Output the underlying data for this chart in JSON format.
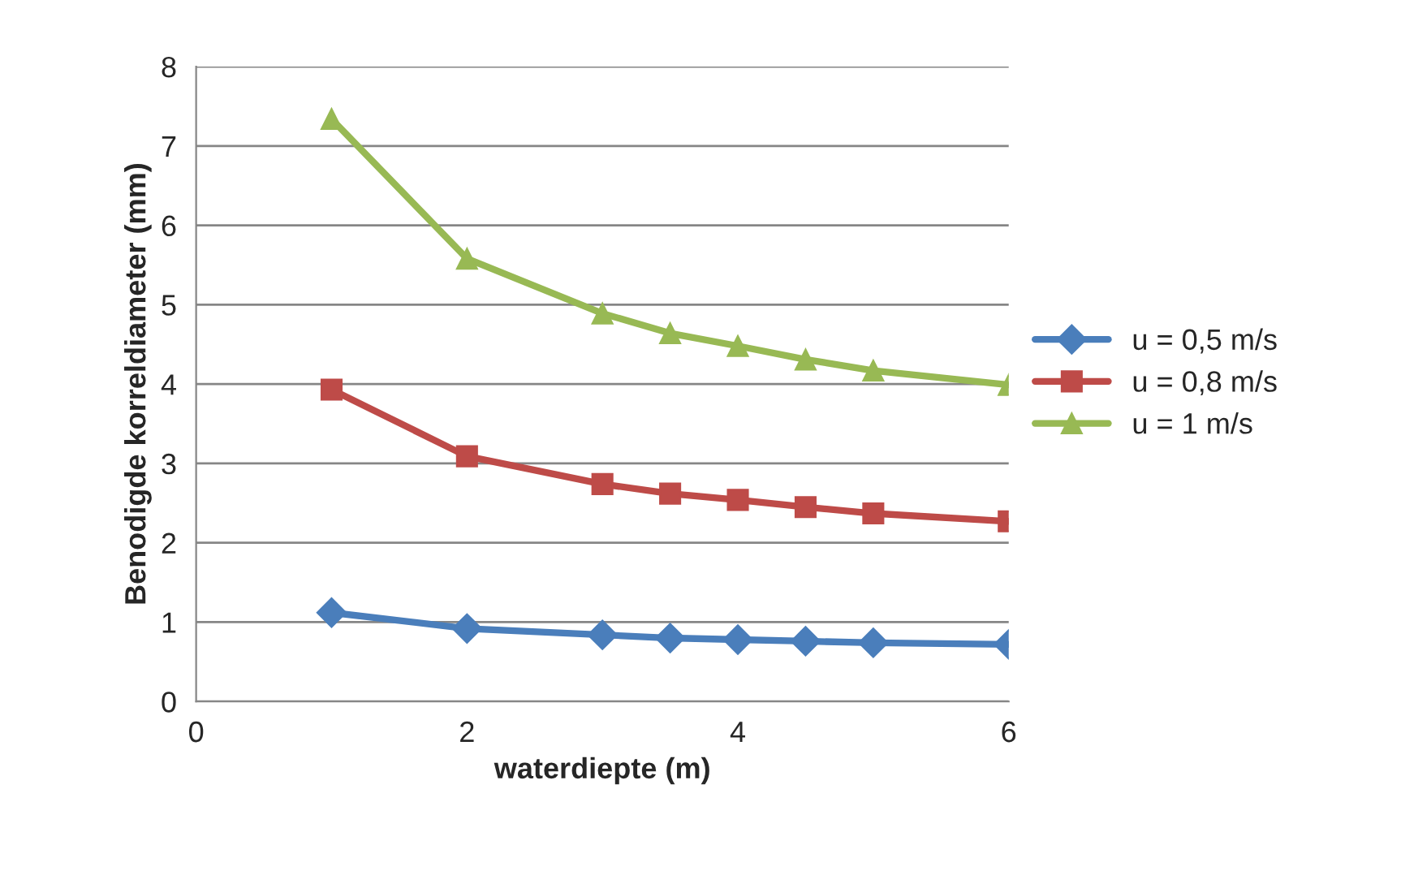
{
  "chart_data": {
    "type": "line",
    "xlabel": "waterdiepte (m)",
    "ylabel": "Benodigde korreldiameter (mm)",
    "xlim": [
      0,
      6
    ],
    "xticks": [
      0,
      2,
      4,
      6
    ],
    "ylim": [
      0,
      8
    ],
    "yticks": [
      0,
      1,
      2,
      3,
      4,
      5,
      6,
      7,
      8
    ],
    "grid": "y",
    "legend": "right",
    "line_style": "solid",
    "x": [
      1,
      2,
      3,
      3.5,
      4,
      4.5,
      5,
      6
    ],
    "series": [
      {
        "name": "u = 0,5 m/s",
        "color": "#4a7ebb",
        "marker": "diamond",
        "values": [
          1.12,
          0.92,
          0.84,
          0.8,
          0.78,
          0.76,
          0.74,
          0.72
        ]
      },
      {
        "name": "u = 0,8 m/s",
        "color": "#be4b48",
        "marker": "square",
        "values": [
          3.93,
          3.09,
          2.74,
          2.62,
          2.54,
          2.45,
          2.37,
          2.27
        ]
      },
      {
        "name": "u = 1 m/s",
        "color": "#98b954",
        "marker": "triangle",
        "values": [
          7.34,
          5.58,
          4.89,
          4.64,
          4.48,
          4.31,
          4.17,
          3.99
        ]
      }
    ]
  }
}
